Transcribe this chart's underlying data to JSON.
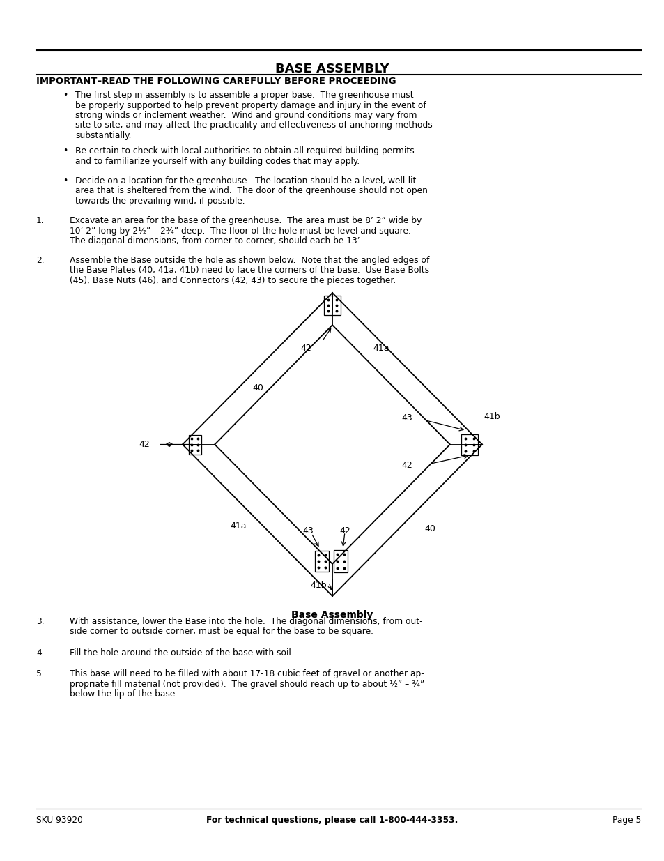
{
  "title": "BASE ASSEMBLY",
  "subtitle": "IMPORTANT–READ THE FOLLOWING CAREFULLY BEFORE PROCEEDING",
  "bullet1_line1": "The first step in assembly is to assemble a proper base.  The greenhouse must",
  "bullet1_line2": "be properly supported to help prevent property damage and injury in the event of",
  "bullet1_line3": "strong winds or inclement weather.  Wind and ground conditions may vary from",
  "bullet1_line4": "site to site, and may affect the practicality and effectiveness of anchoring methods",
  "bullet1_line5": "substantially.",
  "bullet2_line1": "Be certain to check with local authorities to obtain all required building permits",
  "bullet2_line2": "and to familiarize yourself with any building codes that may apply.",
  "bullet3_line1": "Decide on a location for the greenhouse.  The location should be a level, well-lit",
  "bullet3_line2": "area that is sheltered from the wind.  The door of the greenhouse should not open",
  "bullet3_line3": "towards the prevailing wind, if possible.",
  "step1_num": "1.",
  "step1_line1": "Excavate an area for the base of the greenhouse.  The area must be 8’ 2” wide by",
  "step1_line2": "10’ 2” long by 2¹⁄₂” – 2³⁄₄” deep.  The floor of the hole must be level and square.",
  "step1_line3": "The diagonal dimensions, from corner to corner, should each be 13’.",
  "step2_num": "2.",
  "step2_line1": "Assemble the Base outside the hole as shown below.  Note that the angled edges of",
  "step2_line2": "the Base Plates (40, 41a, 41b) need to face the corners of the base.  Use Base Bolts",
  "step2_line3": "(45), Base Nuts (46), and Connectors (42, 43) to secure the pieces together.",
  "diagram_caption": "Base Assembly",
  "step3_num": "3.",
  "step3_line1": "With assistance, lower the Base into the hole.  The diagonal dimensions, from out-",
  "step3_line2": "side corner to outside corner, must be equal for the base to be square.",
  "step4_num": "4.",
  "step4_line1": "Fill the hole around the outside of the base with soil.",
  "step5_num": "5.",
  "step5_line1": "This base will need to be filled with about 17-18 cubic feet of gravel or another ap-",
  "step5_line2": "propriate fill material (not provided).  The gravel should reach up to about ¹⁄₂” – ³⁄₄”",
  "step5_line3": "below the lip of the base.",
  "footer_sku": "SKU 93920",
  "footer_center": "For technical questions, please call 1-800-444-3353.",
  "footer_page": "Page 5",
  "bg_color": "#ffffff",
  "text_color": "#000000"
}
